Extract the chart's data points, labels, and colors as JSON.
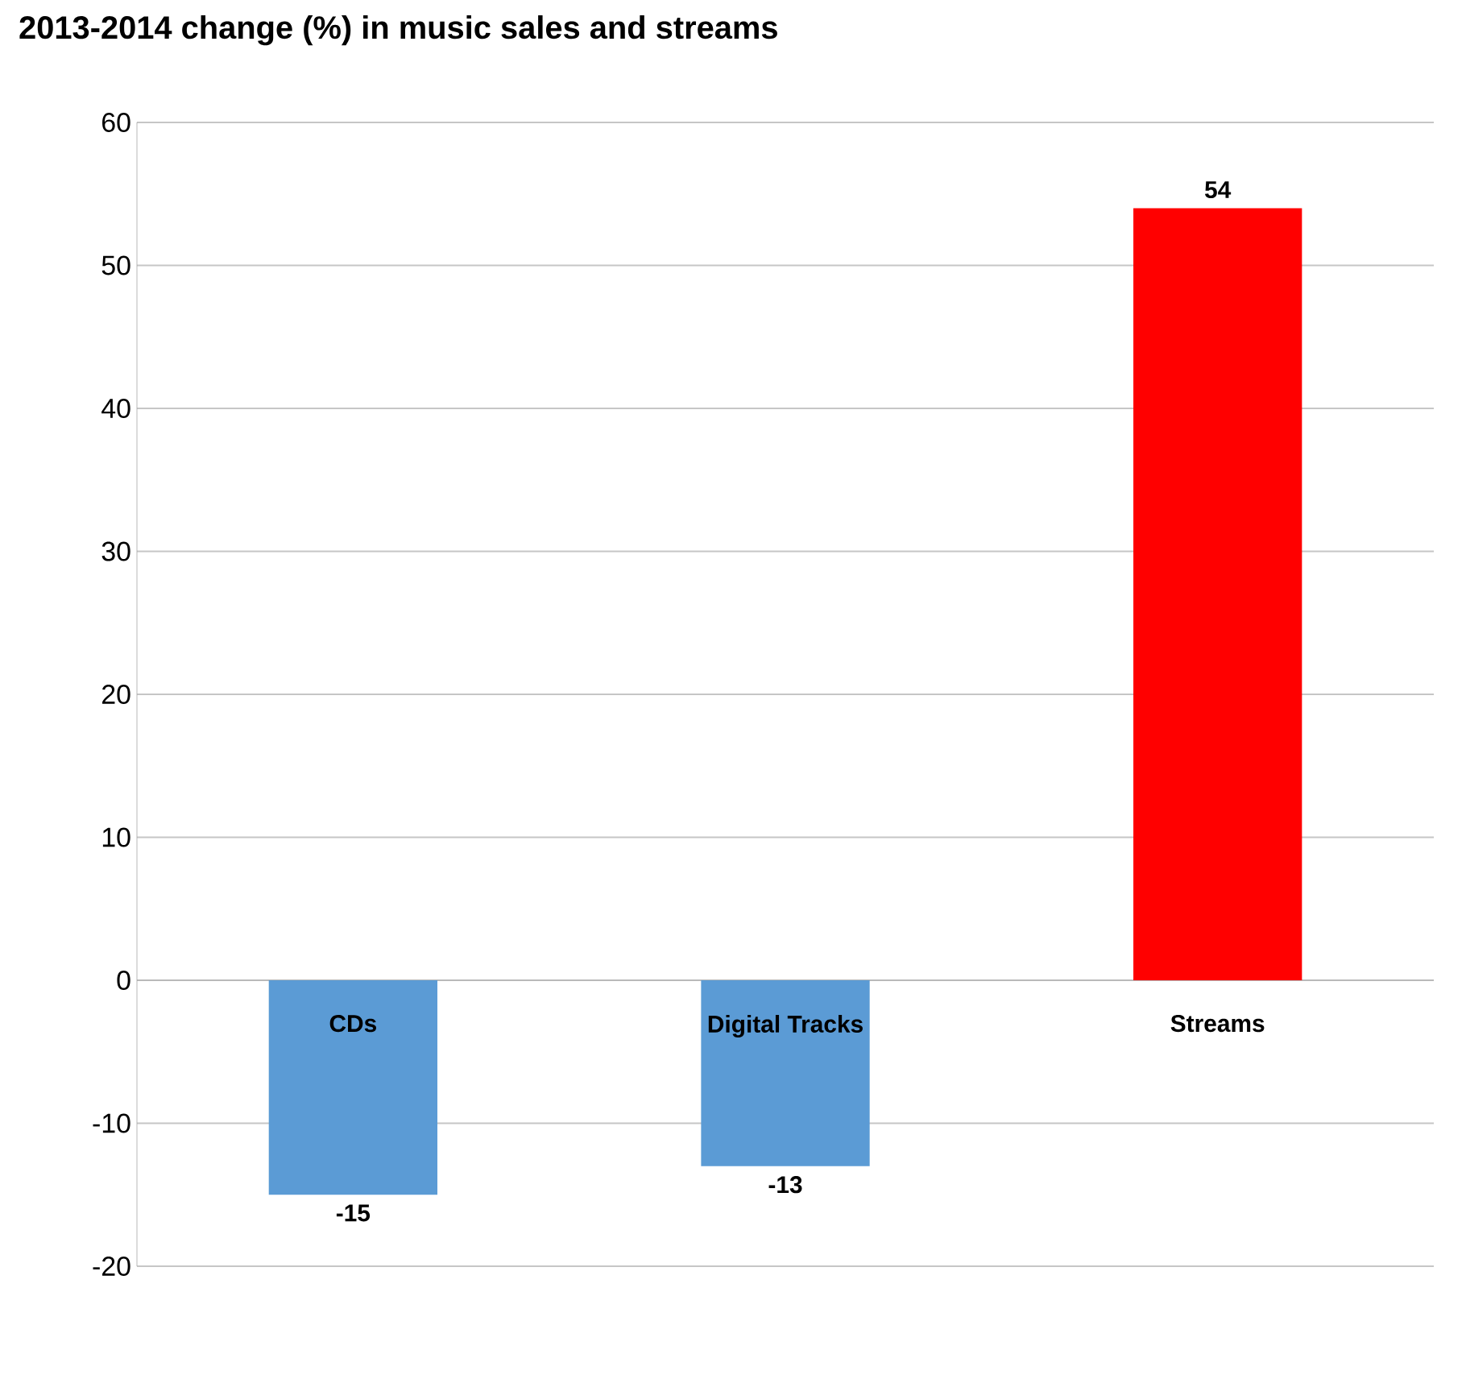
{
  "chart_data": {
    "type": "bar",
    "title": "2013-2014 change (%) in music sales and streams",
    "categories": [
      "CDs",
      "Digital Tracks",
      "Streams"
    ],
    "values": [
      -15,
      -13,
      54
    ],
    "colors": [
      "#5b9bd5",
      "#5b9bd5",
      "#ff0000"
    ],
    "ylim": [
      -20,
      60
    ],
    "yticks": [
      -20,
      -10,
      0,
      10,
      20,
      30,
      40,
      50,
      60
    ],
    "grid": "y",
    "data_labels": true
  }
}
